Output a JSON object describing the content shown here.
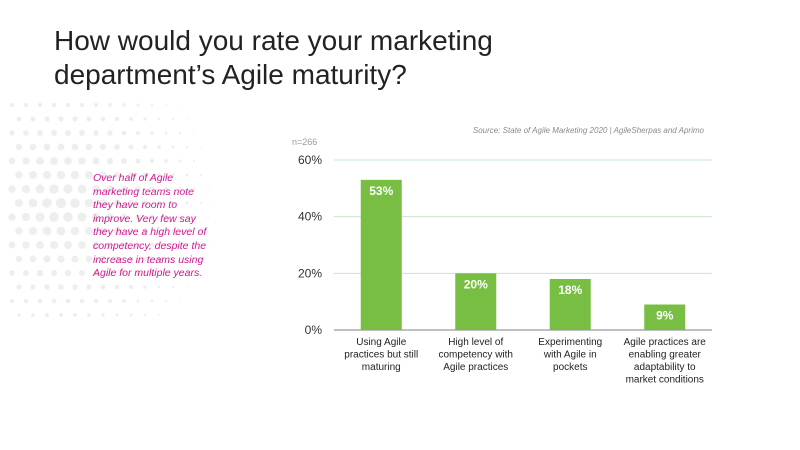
{
  "page": {
    "title": "How would you rate your marketing department’s Agile maturity?",
    "callout": "Over half of Agile marketing teams note they have room to improve. Very few say they have a high level of competency, despite the increase in teams using Agile for multiple years.",
    "source": "Source: State of Agile Marketing 2020 | AgileSherpas and Aprimo",
    "n_label": "n=266"
  },
  "colors": {
    "bar": "#78be43",
    "grid": "#c9e6cf",
    "callout": "#d0198f",
    "dots": "#eeeeee"
  },
  "chart_data": {
    "type": "bar",
    "title": "",
    "xlabel": "",
    "ylabel": "",
    "categories": [
      [
        "Using Agile",
        "practices but still",
        "maturing"
      ],
      [
        "High level of",
        "competency with",
        "Agile practices"
      ],
      [
        "Experimenting",
        "with Agile in",
        "pockets"
      ],
      [
        "Agile practices are",
        "enabling greater",
        "adaptability to",
        "market conditions"
      ]
    ],
    "values": [
      53,
      20,
      18,
      9
    ],
    "data_labels": [
      "53%",
      "20%",
      "18%",
      "9%"
    ],
    "ylim": [
      0,
      60
    ],
    "yticks": [
      0,
      20,
      40,
      60
    ],
    "ytick_labels": [
      "0%",
      "20%",
      "40%",
      "60%"
    ],
    "grid": true,
    "legend": "none"
  }
}
